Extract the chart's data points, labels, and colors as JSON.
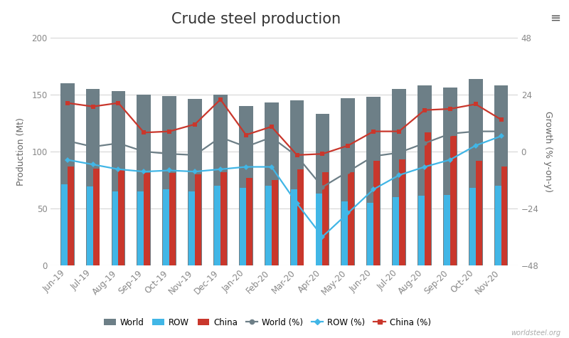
{
  "title": "Crude steel production",
  "ylabel_left": "Production (Mt)",
  "ylabel_right": "Growth (% y-on-y)",
  "categories": [
    "Jun-19",
    "Jul-19",
    "Aug-19",
    "Sep-19",
    "Oct-19",
    "Nov-19",
    "Dec-19",
    "Jan-20",
    "Feb-20",
    "Mar-20",
    "Apr-20",
    "May-20",
    "Jun-20",
    "Jul-20",
    "Aug-20",
    "Sep-20",
    "Oct-20",
    "Nov-20"
  ],
  "world": [
    160,
    155,
    153,
    150,
    149,
    146,
    150,
    140,
    143,
    145,
    133,
    147,
    148,
    155,
    158,
    156,
    164,
    158
  ],
  "row": [
    71,
    69,
    65,
    65,
    67,
    65,
    70,
    68,
    70,
    67,
    63,
    56,
    55,
    60,
    61,
    62,
    68,
    70
  ],
  "china": [
    87,
    85,
    84,
    81,
    81,
    80,
    82,
    77,
    75,
    84,
    82,
    82,
    92,
    93,
    117,
    114,
    92,
    87
  ],
  "world_pct": [
    4.5,
    2.0,
    3.5,
    0.0,
    -1.0,
    -1.5,
    6.0,
    2.0,
    6.0,
    -2.0,
    -15.0,
    -8.5,
    -2.0,
    -0.5,
    3.5,
    7.5,
    8.5,
    8.5
  ],
  "row_pct": [
    -3.5,
    -5.5,
    -7.5,
    -8.5,
    -8.0,
    -8.5,
    -7.5,
    -6.5,
    -6.5,
    -22.0,
    -36.0,
    -26.0,
    -16.0,
    -10.0,
    -6.5,
    -3.5,
    2.5,
    6.5
  ],
  "china_pct": [
    20.5,
    19.0,
    20.5,
    8.0,
    8.5,
    11.5,
    22.0,
    7.0,
    10.5,
    -1.5,
    -1.0,
    2.5,
    8.5,
    8.5,
    17.5,
    18.0,
    20.0,
    13.5
  ],
  "world_bar_color": "#6d7f87",
  "row_bar_color": "#41b6e6",
  "china_bar_color": "#c9372c",
  "world_line_color": "#6d7f87",
  "row_line_color": "#41b6e6",
  "china_line_color": "#c9372c",
  "ylim_left": [
    0,
    200
  ],
  "ylim_right": [
    -48,
    48
  ],
  "yticks_left": [
    0,
    50,
    100,
    150,
    200
  ],
  "yticks_right": [
    -48,
    -24,
    0,
    24,
    48
  ],
  "background_color": "#ffffff",
  "grid_color": "#d5d5d5",
  "title_fontsize": 15,
  "axis_fontsize": 9,
  "tick_fontsize": 8.5,
  "footer_text": "worldsteel.org"
}
